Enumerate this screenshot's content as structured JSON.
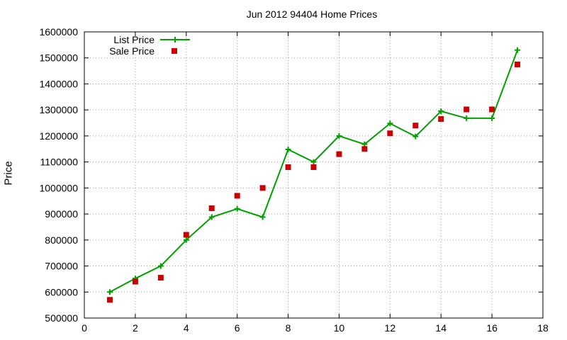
{
  "chart_data": {
    "type": "line",
    "title": "Jun 2012 94404 Home Prices",
    "xlabel": "",
    "ylabel": "Price",
    "xlim": [
      0,
      18
    ],
    "ylim": [
      500000,
      1600000
    ],
    "xticks": [
      0,
      2,
      4,
      6,
      8,
      10,
      12,
      14,
      16,
      18
    ],
    "yticks": [
      500000,
      600000,
      700000,
      800000,
      900000,
      1000000,
      1100000,
      1200000,
      1300000,
      1400000,
      1500000,
      1600000
    ],
    "grid": true,
    "legend": "top-left",
    "series": [
      {
        "name": "List Price",
        "style": "line-with-plus-markers",
        "color": "#00a000",
        "x": [
          1,
          2,
          3,
          4,
          5,
          6,
          7,
          8,
          9,
          10,
          11,
          12,
          13,
          14,
          15,
          16,
          17
        ],
        "values": [
          600000,
          652000,
          700000,
          800000,
          888000,
          920000,
          888000,
          1148000,
          1100000,
          1200000,
          1168000,
          1248000,
          1198000,
          1295000,
          1268000,
          1268000,
          1530000
        ]
      },
      {
        "name": "Sale Price",
        "style": "square-markers",
        "color": "#cc0000",
        "x": [
          1,
          2,
          3,
          4,
          5,
          6,
          7,
          8,
          9,
          10,
          11,
          12,
          13,
          14,
          15,
          16,
          17
        ],
        "values": [
          570000,
          640000,
          655000,
          820000,
          922000,
          970000,
          1000000,
          1080000,
          1080000,
          1130000,
          1150000,
          1210000,
          1240000,
          1265000,
          1302000,
          1302000,
          1475000
        ]
      }
    ]
  }
}
